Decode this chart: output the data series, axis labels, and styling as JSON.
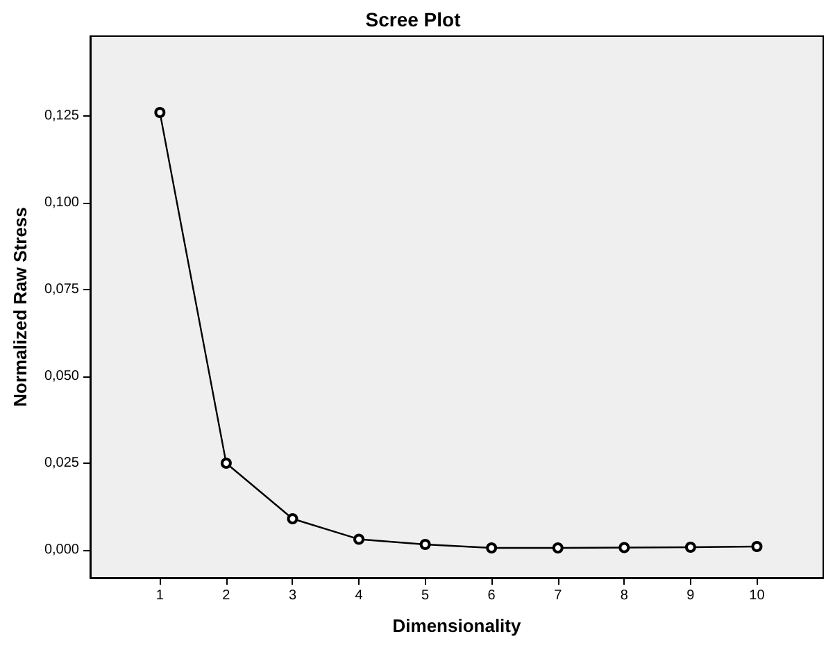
{
  "chart_data": {
    "type": "line",
    "title": "Scree Plot",
    "xlabel": "Dimensionality",
    "ylabel": "Normalized Raw Stress",
    "x": [
      1,
      2,
      3,
      4,
      5,
      6,
      7,
      8,
      9,
      10
    ],
    "series": [
      {
        "color": "#000000",
        "values": [
          0.126,
          0.025,
          0.009,
          0.0031,
          0.0016,
          0.0006,
          0.0006,
          0.0007,
          0.0008,
          0.001
        ]
      }
    ],
    "xlim": [
      -0.05,
      11
    ],
    "xticks": [
      1,
      2,
      3,
      4,
      5,
      6,
      7,
      8,
      9,
      10
    ],
    "ylim": [
      -0.008,
      0.148
    ],
    "yticks": [
      {
        "value": 0,
        "label": "0,000"
      },
      {
        "value": 0.025,
        "label": "0,025"
      },
      {
        "value": 0.05,
        "label": "0,050"
      },
      {
        "value": 0.075,
        "label": "0,075"
      },
      {
        "value": 0.1,
        "label": "0,100"
      },
      {
        "value": 0.125,
        "label": "0,125"
      }
    ],
    "grid": false,
    "marker": "circle",
    "line_style": "solid"
  }
}
